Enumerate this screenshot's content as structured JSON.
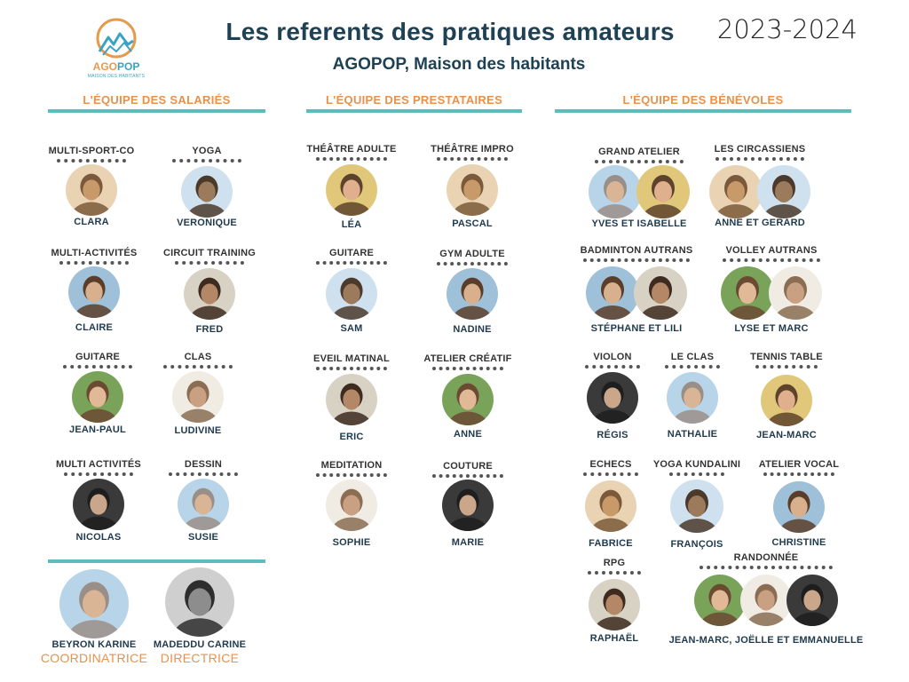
{
  "header": {
    "title": "Les referents des pratiques amateurs",
    "subtitle": "AGOPOP, Maison des habitants",
    "year": "2023-2024",
    "logo_text_a": "AGO",
    "logo_text_b": "POP",
    "logo_sub": "MAISON DES HABITANTS"
  },
  "sections": {
    "salaries": "L'ÉQUIPE DES SALARIÉS",
    "prestataires": "L'ÉQUIPE DES PRESTATAIRES",
    "benevoles": "L'ÉQUIPE DES BÉNÉVOLES"
  },
  "salaries": [
    {
      "activity": "MULTI-SPORT-CO",
      "name": "CLARA"
    },
    {
      "activity": "YOGA",
      "name": "VERONIQUE"
    },
    {
      "activity": "MULTI-ACTIVITÉS",
      "name": "CLAIRE"
    },
    {
      "activity": "CIRCUIT TRAINING",
      "name": "FRED"
    },
    {
      "activity": "GUITARE",
      "name": "JEAN-PAUL"
    },
    {
      "activity": "CLAS",
      "name": "LUDIVINE"
    },
    {
      "activity": "MULTI ACTIVITÉS",
      "name": "NICOLAS"
    },
    {
      "activity": "DESSIN",
      "name": "SUSIE"
    }
  ],
  "direction": [
    {
      "name": "BEYRON KARINE",
      "role": "COORDINATRICE"
    },
    {
      "name": "MADEDDU CARINE",
      "role": "DIRECTRICE"
    }
  ],
  "prestataires": [
    {
      "activity": "THÉÂTRE ADULTE",
      "name": "LÉA"
    },
    {
      "activity": "THÉÂTRE IMPRO",
      "name": "PASCAL"
    },
    {
      "activity": "GUITARE",
      "name": "SAM"
    },
    {
      "activity": "GYM ADULTE",
      "name": "NADINE"
    },
    {
      "activity": "EVEIL MATINAL",
      "name": "ERIC"
    },
    {
      "activity": "ATELIER CRÉATIF",
      "name": "ANNE"
    },
    {
      "activity": "MEDITATION",
      "name": "SOPHIE"
    },
    {
      "activity": "COUTURE",
      "name": "MARIE"
    }
  ],
  "benevoles": [
    {
      "activity": "GRAND ATELIER",
      "name": "YVES ET ISABELLE"
    },
    {
      "activity": "LES CIRCASSIENS",
      "name": "ANNE ET GERARD"
    },
    {
      "activity": "BADMINTON AUTRANS",
      "name": "STÉPHANE ET LILI"
    },
    {
      "activity": "VOLLEY AUTRANS",
      "name": "LYSE ET MARC"
    },
    {
      "activity": "VIOLON",
      "name": "RÉGIS"
    },
    {
      "activity": "LE CLAS",
      "name": "NATHALIE"
    },
    {
      "activity": "TENNIS TABLE",
      "name": "JEAN-MARC"
    },
    {
      "activity": "ECHECS",
      "name": "FABRICE"
    },
    {
      "activity": "YOGA KUNDALINI",
      "name": "FRANÇOIS"
    },
    {
      "activity": "ATELIER VOCAL",
      "name": "CHRISTINE"
    },
    {
      "activity": "RPG",
      "name": "RAPHAËL"
    },
    {
      "activity": "RANDONNÉE",
      "name": "JEAN-MARC, JOËLLE ET EMMANUELLE"
    }
  ]
}
